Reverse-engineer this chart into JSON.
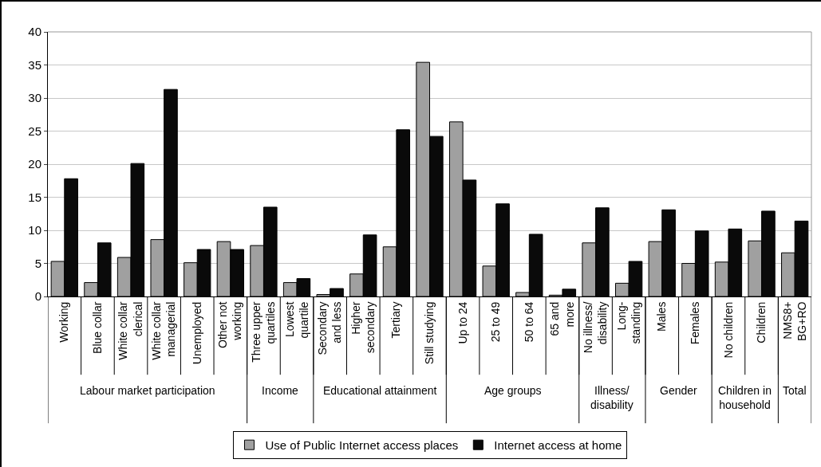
{
  "chart_data": {
    "type": "bar",
    "categories": [
      "Working",
      "Blue collar",
      "White collar\nclerical",
      "White collar\nmanagerial",
      "Unemployed",
      "Other not\nworking",
      "Three upper\nquartiles",
      "Lowest\nquartile",
      "Secondary\nand less",
      "Higher\nsecondary",
      "Tertiary",
      "Still studying",
      "Up to 24",
      "25 to 49",
      "50 to 64",
      "65 and\nmore",
      "No illness/\ndisability",
      "Long-\nstanding",
      "Males",
      "Females",
      "No children",
      "Children",
      "NMS8+\nBG+RO"
    ],
    "series": [
      {
        "name": "Use of Public Internet access places",
        "color": "#a0a0a0",
        "values": [
          5.3,
          2.1,
          5.9,
          8.6,
          5.1,
          8.3,
          7.7,
          2.1,
          0.3,
          3.4,
          7.5,
          35.4,
          26.4,
          4.6,
          0.6,
          0.2,
          8.1,
          2.0,
          8.3,
          5.0,
          5.2,
          8.4,
          6.6
        ]
      },
      {
        "name": "Internet access at home",
        "color": "#0a0a0a",
        "values": [
          17.8,
          8.1,
          20.1,
          31.3,
          7.1,
          7.1,
          13.5,
          2.7,
          1.2,
          9.3,
          25.2,
          24.2,
          17.6,
          14.0,
          9.4,
          1.1,
          13.4,
          5.3,
          13.1,
          9.9,
          10.2,
          12.9,
          11.4
        ]
      }
    ],
    "annotations": [
      "Labour market participation",
      "Income",
      "Educational attainment",
      "Age groups",
      "Illness/\ndisability",
      "Gender",
      "Children in\nhousehold",
      "Total"
    ],
    "ylim": [
      0,
      40
    ],
    "yticks": [
      0,
      5,
      10,
      15,
      20,
      25,
      30,
      35,
      40
    ],
    "grid": "y",
    "legend": "bottom"
  }
}
